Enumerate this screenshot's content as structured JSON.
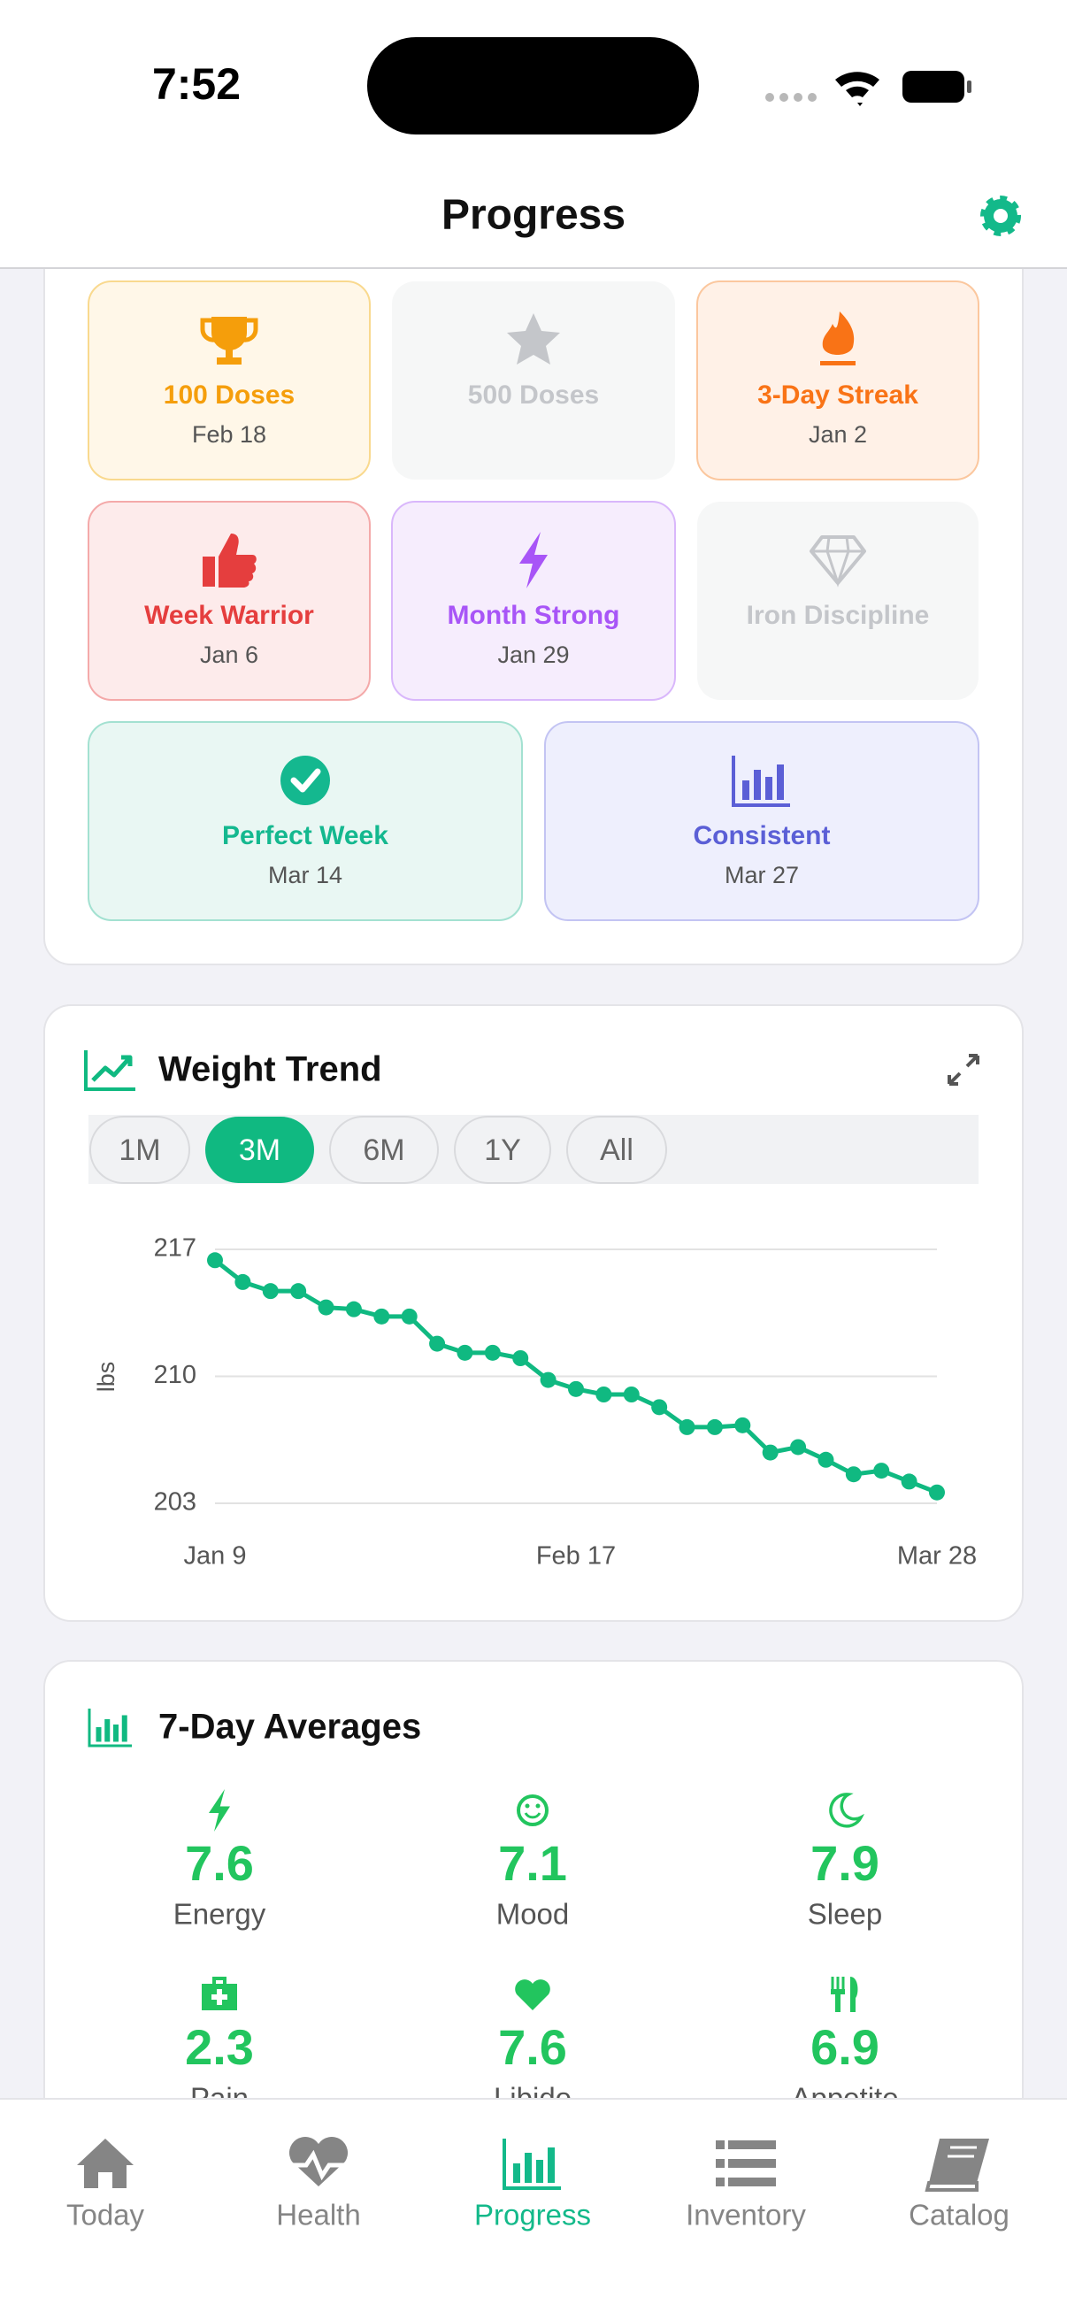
{
  "status_bar": {
    "time": "7:52"
  },
  "header": {
    "title": "Progress"
  },
  "achievements": [
    {
      "title": "100 Doses",
      "date": "Feb 18",
      "color": "#f59e0b",
      "bg": "#fff7e8",
      "border": "#f9d98e"
    },
    {
      "title": "500 Doses",
      "color": "#c4c6ca",
      "bg": "#f6f7f7"
    },
    {
      "title": "3-Day Streak",
      "date": "Jan 2",
      "color": "#f97316",
      "bg": "#fff1e7",
      "border": "#fbc79e"
    },
    {
      "title": "Week Warrior",
      "date": "Jan 6",
      "color": "#e53e3e",
      "bg": "#fdebeb",
      "border": "#f4a9a9"
    },
    {
      "title": "Month Strong",
      "date": "Jan 29",
      "color": "#a855f7",
      "bg": "#f6edfd",
      "border": "#d9b7fb"
    },
    {
      "title": "Iron Discipline",
      "color": "#c4c6ca",
      "bg": "#f6f7f7"
    },
    {
      "title": "Perfect Week",
      "date": "Mar 14",
      "color": "#14b88f",
      "bg": "#e9f7f3",
      "border": "#a3e1d1"
    },
    {
      "title": "Consistent",
      "date": "Mar 27",
      "color": "#5b5fd6",
      "bg": "#eeeffd",
      "border": "#c3c4f3"
    }
  ],
  "weight_card": {
    "periods": [
      "1M",
      "3M",
      "6M",
      "1Y",
      "All"
    ],
    "selected_period_index": 1
  },
  "chart_data": {
    "type": "line",
    "title": "Weight Trend",
    "y_label": "lbs",
    "categories": [
      "Jan 9",
      null,
      null,
      null,
      null,
      null,
      null,
      null,
      null,
      null,
      null,
      null,
      null,
      "Feb 17",
      null,
      null,
      null,
      null,
      null,
      null,
      null,
      null,
      null,
      null,
      null,
      null,
      "Mar 28"
    ],
    "values": [
      216.4,
      215.2,
      214.7,
      214.7,
      213.8,
      213.7,
      213.3,
      213.3,
      211.8,
      211.3,
      211.3,
      211.0,
      209.8,
      209.3,
      209.0,
      209.0,
      208.3,
      207.2,
      207.2,
      207.3,
      205.8,
      206.1,
      205.4,
      204.6,
      204.8,
      204.2,
      203.6
    ],
    "color": "#10b981",
    "ylim": [
      203,
      217
    ],
    "yticks": [
      203,
      210,
      217
    ],
    "grid": true
  },
  "averages": {
    "title": "7-Day Averages",
    "color": "#22c55e",
    "items": [
      {
        "value": 7.6,
        "label": "Energy"
      },
      {
        "value": 7.1,
        "label": "Mood"
      },
      {
        "value": 7.9,
        "label": "Sleep"
      },
      {
        "value": 2.3,
        "label": "Pain"
      },
      {
        "value": 7.6,
        "label": "Libido"
      },
      {
        "value": 6.9,
        "label": "Appetite"
      }
    ]
  },
  "tab_bar": {
    "items": [
      "Today",
      "Health",
      "Progress",
      "Inventory",
      "Catalog"
    ],
    "active_index": 2,
    "active_color": "#13b98a"
  }
}
